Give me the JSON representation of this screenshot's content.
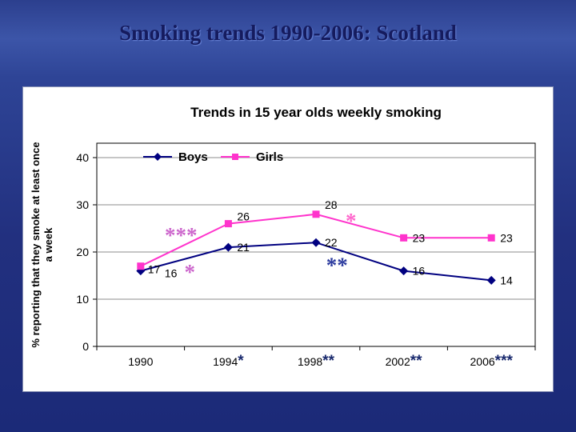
{
  "slide": {
    "title": "Smoking trends 1990-2006: Scotland"
  },
  "chart_data": {
    "type": "line",
    "title": "Trends in 15 year olds weekly smoking",
    "ylabel_lines": [
      "% reporting that they smoke at least once",
      "a week"
    ],
    "categories": [
      "1990",
      "1994",
      "1998",
      "2002",
      "2006"
    ],
    "x_tick_suffixes": [
      "",
      "*",
      "**",
      "**",
      "***"
    ],
    "axis_suffix_color": "#1a2a6e",
    "ylim": [
      0,
      40
    ],
    "yticks": [
      0,
      10,
      20,
      30,
      40
    ],
    "grid": true,
    "legend_position": "top-inside",
    "series": [
      {
        "name": "Boys",
        "color": "#000080",
        "marker": "diamond",
        "values": [
          16,
          21,
          22,
          16,
          14
        ]
      },
      {
        "name": "Girls",
        "color": "#ff33cc",
        "marker": "square",
        "values": [
          17,
          26,
          28,
          23,
          23
        ]
      }
    ],
    "annotations": [
      {
        "text": "***",
        "x": 0.46,
        "y": 23.6,
        "color": "#cc66cc"
      },
      {
        "text": "*",
        "x": 0.56,
        "y": 15.8,
        "color": "#cc66cc"
      },
      {
        "text": "*",
        "x": 2.4,
        "y": 26.6,
        "color": "#ff66cc"
      },
      {
        "text": "**",
        "x": 2.24,
        "y": 17.2,
        "color": "#2b3a9e"
      }
    ]
  }
}
